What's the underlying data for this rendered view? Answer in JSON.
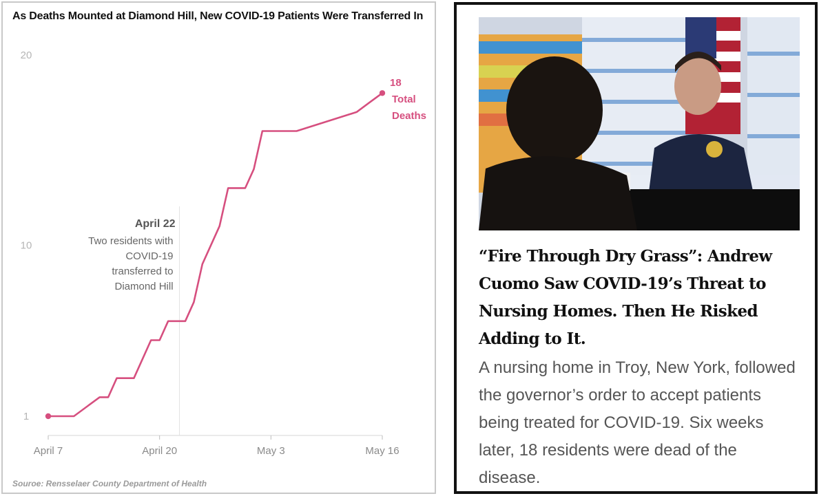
{
  "chart": {
    "title": "As Deaths Mounted at Diamond Hill, New COVID-19 Patients Were Transferred In",
    "source": "Souroe: Rensselaer County Department of Health",
    "accent_color": "#d64f7f",
    "annotation": {
      "date": "April 22",
      "lines": [
        "Two residents with",
        "COVID-19",
        "transferred to",
        "Diamond Hill"
      ]
    },
    "end_label": {
      "value": "18",
      "lines": [
        "Total",
        "Deaths"
      ]
    }
  },
  "chart_data": {
    "type": "line",
    "title": "As Deaths Mounted at Diamond Hill, New COVID-19 Patients Were Transferred In",
    "xlabel": "",
    "ylabel": "",
    "x_ticks": [
      {
        "label": "April 7",
        "day": 0
      },
      {
        "label": "April 20",
        "day": 13
      },
      {
        "label": "May 3",
        "day": 26
      },
      {
        "label": "May 16",
        "day": 39
      }
    ],
    "y_ticks": [
      1,
      10,
      20
    ],
    "xlim": [
      0,
      39
    ],
    "ylim": [
      0,
      20
    ],
    "grid": false,
    "series": [
      {
        "name": "Total Deaths",
        "points": [
          [
            0,
            1
          ],
          [
            3,
            1
          ],
          [
            6,
            2
          ],
          [
            7,
            2
          ],
          [
            8,
            3
          ],
          [
            10,
            3
          ],
          [
            12,
            5
          ],
          [
            13,
            5
          ],
          [
            14,
            6
          ],
          [
            16,
            6
          ],
          [
            17,
            7
          ],
          [
            18,
            9
          ],
          [
            20,
            11
          ],
          [
            21,
            13
          ],
          [
            23,
            13
          ],
          [
            24,
            14
          ],
          [
            25,
            16
          ],
          [
            29,
            16
          ],
          [
            36,
            17
          ],
          [
            37.5,
            17.5
          ],
          [
            39,
            18
          ]
        ]
      }
    ]
  },
  "article": {
    "headline": "“Fire Through Dry Grass”: Andrew Cuomo Saw COVID-19’s Threat to Nursing Homes. Then He Risked Adding to It.",
    "dek": "A nursing home in Troy, New York, followed the governor’s order to accept patients being treated for COVID-19. Six weeks later, 18 residents were dead of the disease."
  }
}
